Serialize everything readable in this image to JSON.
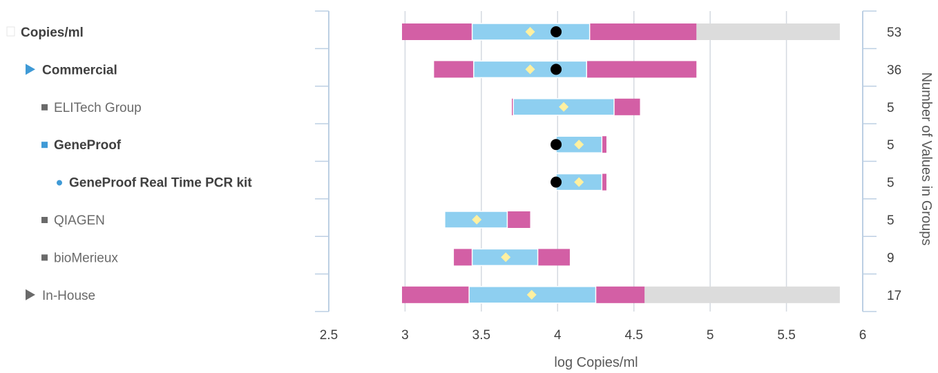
{
  "chart_data": {
    "type": "bar",
    "xlabel": "log Copies/ml",
    "ylabel_right": "Number of Values in Groups",
    "xlim": [
      2.5,
      6
    ],
    "xticks": [
      "2.5",
      "3",
      "3.5",
      "4",
      "4.5",
      "5",
      "5.5",
      "6"
    ],
    "grid": true,
    "colors": {
      "outer_range": "#d35fa5",
      "inner_range": "#8ecff0",
      "extended_range": "#dcdcdc",
      "mean_marker": "#fff0a0",
      "reference_marker": "#000000",
      "bold_label": "#404040",
      "normal_label": "#6a6a6a",
      "blue_icon": "#3f9ad6",
      "grid": "#d4d9e0",
      "axis": "#bccfe3"
    },
    "rows": [
      {
        "label": "Copies/ml",
        "icon": "checkbox-icon",
        "indent": 0,
        "bold": true,
        "range": [
          2.98,
          4.91
        ],
        "inner": [
          3.44,
          4.21
        ],
        "extended_to": 5.85,
        "mean": 3.82,
        "reference": 3.99,
        "count": "53"
      },
      {
        "label": "Commercial",
        "icon": "triangle-right-icon",
        "indent": 1,
        "bold": true,
        "range": [
          3.19,
          4.91
        ],
        "inner": [
          3.45,
          4.19
        ],
        "mean": 3.82,
        "reference": 3.99,
        "count": "36"
      },
      {
        "label": "ELITech Group",
        "icon": "square-icon",
        "indent": 2,
        "bold": false,
        "range": [
          3.7,
          4.54
        ],
        "inner": [
          3.71,
          4.37
        ],
        "mean": 4.04,
        "count": "5"
      },
      {
        "label": "GeneProof",
        "icon": "square-icon",
        "indent": 2,
        "bold": true,
        "range": [
          3.99,
          4.32
        ],
        "inner": [
          3.99,
          4.29
        ],
        "mean": 4.14,
        "reference": 3.99,
        "count": "5"
      },
      {
        "label": "GeneProof Real Time PCR kit",
        "icon": "dot-icon",
        "indent": 3,
        "bold": true,
        "range": [
          3.99,
          4.32
        ],
        "inner": [
          3.99,
          4.29
        ],
        "mean": 4.14,
        "reference": 3.99,
        "count": "5"
      },
      {
        "label": "QIAGEN",
        "icon": "square-icon",
        "indent": 2,
        "bold": false,
        "range": [
          3.26,
          3.82
        ],
        "inner": [
          3.26,
          3.67
        ],
        "mean": 3.47,
        "count": "5"
      },
      {
        "label": "bioMerieux",
        "icon": "square-icon",
        "indent": 2,
        "bold": false,
        "range": [
          3.32,
          4.08
        ],
        "inner": [
          3.44,
          3.87
        ],
        "mean": 3.66,
        "count": "9"
      },
      {
        "label": "In-House",
        "icon": "triangle-right-icon",
        "indent": 1,
        "bold": false,
        "range": [
          2.98,
          4.57
        ],
        "inner": [
          3.42,
          4.25
        ],
        "extended_to": 5.85,
        "mean": 3.83,
        "count": "17"
      }
    ]
  }
}
